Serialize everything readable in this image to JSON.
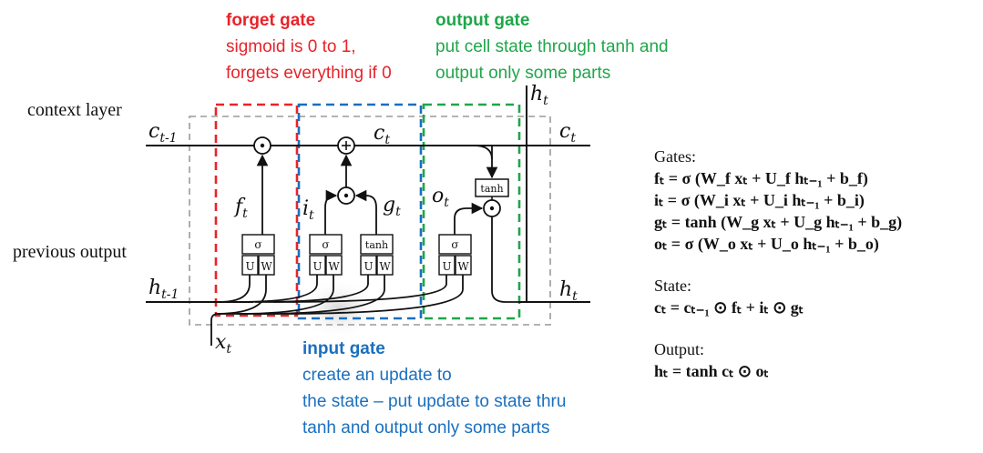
{
  "annotations": {
    "forget_gate": {
      "title": "forget gate",
      "line1": "sigmoid is 0 to 1,",
      "line2": "forgets everything if 0"
    },
    "output_gate": {
      "title": "output gate",
      "line1": "put cell state through tanh and",
      "line2": "output only some parts"
    },
    "input_gate": {
      "title": "input gate",
      "line1": "create an update to",
      "line2": "the state – put update to state thru",
      "line3": "tanh and output only some parts"
    }
  },
  "side_labels": {
    "context_layer": "context layer",
    "previous_output": "previous output"
  },
  "diagram": {
    "c_prev": "c",
    "c_prev_sub": "t-1",
    "c_t": "c",
    "c_t_sub": "t",
    "c_out": "c",
    "c_out_sub": "t",
    "h_prev": "h",
    "h_prev_sub": "t-1",
    "h_out": "h",
    "h_out_sub": "t",
    "h_top": "h",
    "h_top_sub": "t",
    "x_t": "x",
    "x_t_sub": "t",
    "f_t": "f",
    "f_t_sub": "t",
    "i_t": "i",
    "i_t_sub": "t",
    "g_t": "g",
    "g_t_sub": "t",
    "o_t": "o",
    "o_t_sub": "t",
    "sigma": "σ",
    "tanh": "tanh",
    "U": "U",
    "W": "W",
    "dot": "•",
    "plus": "+"
  },
  "equations": {
    "gates_header": "Gates:",
    "f": "fₜ = σ (W_f xₜ + U_f hₜ₋₁ + b_f)",
    "i": "iₜ = σ (W_i xₜ + U_i hₜ₋₁ + b_i)",
    "g": "gₜ = tanh (W_g xₜ + U_g hₜ₋₁ + b_g)",
    "o": "oₜ = σ (W_o xₜ + U_o hₜ₋₁ + b_o)",
    "state_header": "State:",
    "c": "cₜ = cₜ₋₁ ⊙ fₜ + iₜ ⊙ gₜ",
    "output_header": "Output:",
    "h": "hₜ = tanh cₜ ⊙ oₜ"
  },
  "colors": {
    "forget": "#e8232a",
    "input": "#1a6fbf",
    "output": "#1fa64a",
    "gray_box": "#9a9a9a"
  }
}
